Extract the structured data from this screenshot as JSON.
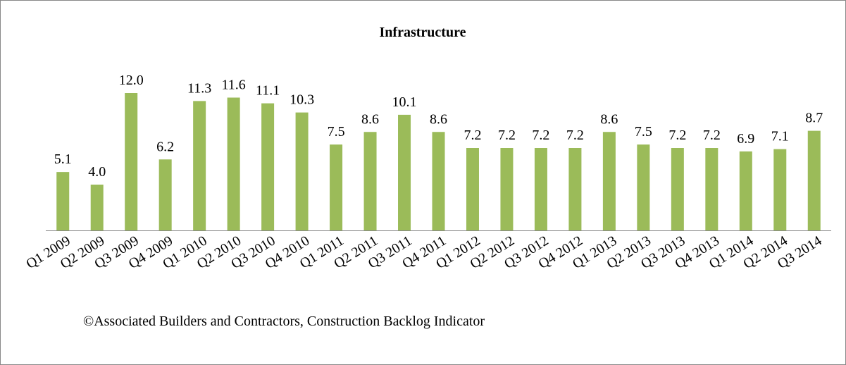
{
  "chart_data": {
    "type": "bar",
    "title": "Infrastructure",
    "categories": [
      "Q1 2009",
      "Q2 2009",
      "Q3 2009",
      "Q4 2009",
      "Q1 2010",
      "Q2 2010",
      "Q3 2010",
      "Q4 2010",
      "Q1 2011",
      "Q2 2011",
      "Q3 2011",
      "Q4 2011",
      "Q1 2012",
      "Q2 2012",
      "Q3 2012",
      "Q4 2012",
      "Q1 2013",
      "Q2 2013",
      "Q3 2013",
      "Q4 2013",
      "Q1 2014",
      "Q2 2014",
      "Q3 2014"
    ],
    "values": [
      5.1,
      4.0,
      12.0,
      6.2,
      11.3,
      11.6,
      11.1,
      10.3,
      7.5,
      8.6,
      10.1,
      8.6,
      7.2,
      7.2,
      7.2,
      7.2,
      8.6,
      7.5,
      7.2,
      7.2,
      6.9,
      7.1,
      8.7
    ],
    "value_labels": [
      "5.1",
      "4.0",
      "12.0",
      "6.2",
      "11.3",
      "11.6",
      "11.1",
      "10.3",
      "7.5",
      "8.6",
      "10.1",
      "8.6",
      "7.2",
      "7.2",
      "7.2",
      "7.2",
      "8.6",
      "7.5",
      "7.2",
      "7.2",
      "6.9",
      "7.1",
      "8.7"
    ],
    "color": "#9bbb59",
    "annotations": [
      "©Associated Builders and Contractors, Construction Backlog Indicator"
    ]
  }
}
